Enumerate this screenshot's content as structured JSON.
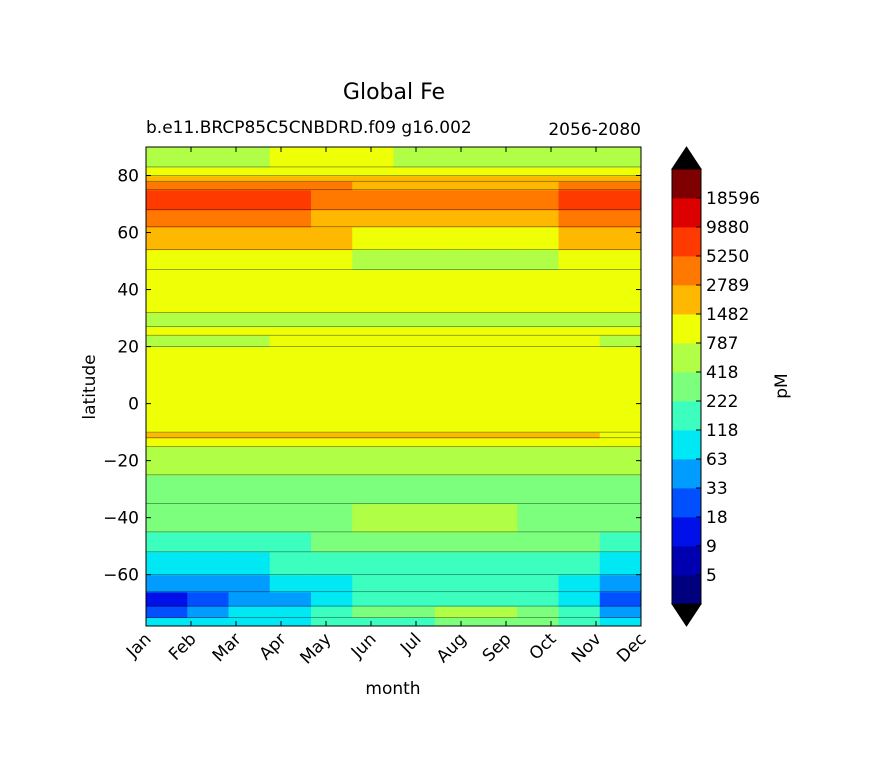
{
  "chart_data": {
    "type": "contourf",
    "title": "Global Fe",
    "subtitle_left": "b.e11.BRCP85C5CNBDRD.f09 g16.002",
    "subtitle_right": "2056-2080",
    "xlabel": "month",
    "ylabel": "latitude",
    "colorbar_label": "pM",
    "x_ticks": [
      "Jan",
      "Feb",
      "Mar",
      "Apr",
      "May",
      "Jun",
      "Jul",
      "Aug",
      "Sep",
      "Oct",
      "Nov",
      "Dec"
    ],
    "y_ticks": [
      80,
      60,
      40,
      20,
      0,
      -20,
      -40,
      -60
    ],
    "ylim": [
      -78,
      90
    ],
    "levels": [
      2,
      5,
      9,
      18,
      33,
      63,
      118,
      222,
      418,
      787,
      1482,
      2789,
      5250,
      9880,
      18596,
      35000
    ],
    "colorbar_tick_labels": [
      "5",
      "9",
      "18",
      "33",
      "63",
      "118",
      "222",
      "418",
      "787",
      "1482",
      "2789",
      "5250",
      "9880",
      "18596"
    ],
    "colorbar_extend": "both",
    "colors": [
      "#00007f",
      "#0000b0",
      "#0010e8",
      "#0050ff",
      "#009cff",
      "#00e8f4",
      "#3cffbf",
      "#7cff7c",
      "#b0ff46",
      "#eeff06",
      "#ffb800",
      "#ff7800",
      "#ff3a00",
      "#dc0000",
      "#7f0000"
    ],
    "extend_colors": {
      "under": "#000000",
      "over": "#000000"
    },
    "latitude_bands_by_month": [
      {
        "lat": [
          -78,
          -75
        ],
        "class": [
          5,
          5,
          5,
          5,
          6,
          6,
          6,
          7,
          7,
          7,
          6,
          5
        ]
      },
      {
        "lat": [
          -75,
          -71
        ],
        "class": [
          3,
          4,
          5,
          5,
          6,
          7,
          7,
          8,
          8,
          7,
          6,
          4
        ]
      },
      {
        "lat": [
          -71,
          -66
        ],
        "class": [
          2,
          3,
          4,
          4,
          5,
          6,
          6,
          6,
          6,
          6,
          5,
          3
        ]
      },
      {
        "lat": [
          -66,
          -60
        ],
        "class": [
          4,
          4,
          4,
          5,
          5,
          6,
          6,
          6,
          6,
          6,
          5,
          4
        ]
      },
      {
        "lat": [
          -60,
          -52
        ],
        "class": [
          5,
          5,
          5,
          6,
          6,
          6,
          6,
          6,
          6,
          6,
          6,
          5
        ]
      },
      {
        "lat": [
          -52,
          -45
        ],
        "class": [
          6,
          6,
          6,
          6,
          7,
          7,
          7,
          7,
          7,
          7,
          7,
          6
        ]
      },
      {
        "lat": [
          -45,
          -35
        ],
        "class": [
          7,
          7,
          7,
          7,
          7,
          8,
          8,
          8,
          8,
          7,
          7,
          7
        ]
      },
      {
        "lat": [
          -35,
          -25
        ],
        "class": [
          7,
          7,
          7,
          7,
          7,
          7,
          7,
          7,
          7,
          7,
          7,
          7
        ]
      },
      {
        "lat": [
          -25,
          -15
        ],
        "class": [
          8,
          8,
          8,
          8,
          8,
          8,
          8,
          8,
          8,
          8,
          8,
          8
        ]
      },
      {
        "lat": [
          -15,
          -12
        ],
        "class": [
          9,
          9,
          9,
          9,
          9,
          9,
          9,
          9,
          9,
          9,
          9,
          9
        ]
      },
      {
        "lat": [
          -12,
          -10
        ],
        "class": [
          10,
          10,
          10,
          10,
          10,
          10,
          10,
          10,
          10,
          10,
          10,
          9
        ]
      },
      {
        "lat": [
          -10,
          20
        ],
        "class": [
          9,
          9,
          9,
          9,
          9,
          9,
          9,
          9,
          9,
          9,
          9,
          9
        ]
      },
      {
        "lat": [
          20,
          24
        ],
        "class": [
          8,
          8,
          8,
          9,
          9,
          9,
          9,
          9,
          9,
          9,
          9,
          8
        ]
      },
      {
        "lat": [
          24,
          27
        ],
        "class": [
          9,
          9,
          9,
          9,
          9,
          9,
          9,
          9,
          9,
          9,
          9,
          9
        ]
      },
      {
        "lat": [
          27,
          32
        ],
        "class": [
          8,
          8,
          8,
          8,
          8,
          8,
          8,
          8,
          8,
          8,
          8,
          8
        ]
      },
      {
        "lat": [
          32,
          47
        ],
        "class": [
          9,
          9,
          9,
          9,
          9,
          9,
          9,
          9,
          9,
          9,
          9,
          9
        ]
      },
      {
        "lat": [
          47,
          54
        ],
        "class": [
          9,
          9,
          9,
          9,
          9,
          8,
          8,
          8,
          8,
          8,
          9,
          9
        ]
      },
      {
        "lat": [
          54,
          62
        ],
        "class": [
          10,
          10,
          10,
          10,
          10,
          9,
          9,
          9,
          9,
          9,
          10,
          10
        ]
      },
      {
        "lat": [
          62,
          68
        ],
        "class": [
          11,
          11,
          11,
          11,
          10,
          10,
          10,
          10,
          10,
          10,
          11,
          11
        ]
      },
      {
        "lat": [
          68,
          75
        ],
        "class": [
          12,
          12,
          12,
          12,
          11,
          11,
          11,
          11,
          11,
          11,
          12,
          12
        ]
      },
      {
        "lat": [
          75,
          78
        ],
        "class": [
          11,
          11,
          11,
          11,
          11,
          10,
          10,
          10,
          10,
          10,
          11,
          11
        ]
      },
      {
        "lat": [
          78,
          80
        ],
        "class": [
          10,
          10,
          10,
          10,
          10,
          10,
          10,
          10,
          10,
          10,
          10,
          10
        ]
      },
      {
        "lat": [
          80,
          83
        ],
        "class": [
          9,
          9,
          9,
          9,
          9,
          9,
          9,
          9,
          9,
          9,
          9,
          9
        ]
      },
      {
        "lat": [
          83,
          90
        ],
        "class": [
          8,
          8,
          8,
          9,
          9,
          9,
          8,
          8,
          8,
          8,
          8,
          8
        ]
      }
    ]
  }
}
